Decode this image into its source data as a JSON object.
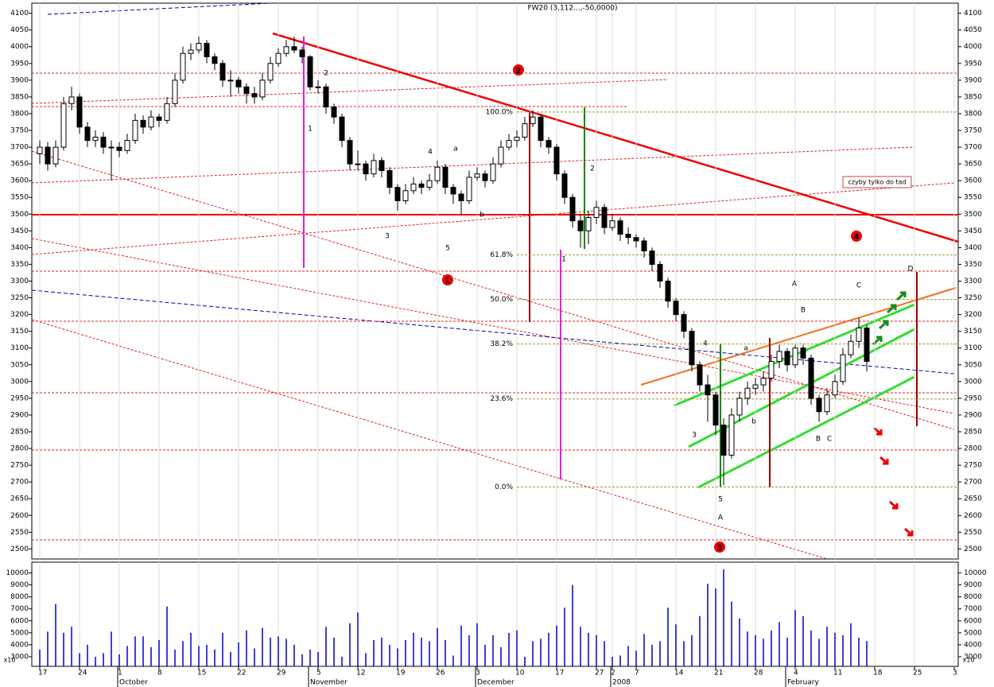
{
  "chart_data": {
    "type": "candlestick",
    "title": "FW20 (3,112...,-50,0000)",
    "categories": [
      "17",
      null,
      null,
      null,
      null,
      "24",
      null,
      null,
      null,
      null,
      "1",
      null,
      null,
      null,
      null,
      "8",
      null,
      null,
      null,
      null,
      "15",
      null,
      null,
      null,
      null,
      "22",
      null,
      null,
      null,
      null,
      "29",
      null,
      null,
      null,
      null,
      "5",
      null,
      null,
      null,
      null,
      "12",
      null,
      null,
      null,
      null,
      "19",
      null,
      null,
      null,
      null,
      "26",
      null,
      null,
      null,
      null,
      "3",
      null,
      null,
      null,
      null,
      "10",
      null,
      null,
      null,
      null,
      "17",
      null,
      null,
      null,
      null,
      "27",
      null,
      "2",
      null,
      null,
      "7",
      null,
      null,
      null,
      null,
      "14",
      null,
      null,
      null,
      null,
      "21",
      null,
      null,
      null,
      null,
      "28",
      null,
      null,
      null,
      null,
      "4",
      null,
      null,
      null,
      null,
      "11",
      null,
      null,
      null,
      null,
      "18",
      null,
      null,
      null,
      null,
      "25",
      null,
      null,
      null,
      null,
      "3"
    ],
    "months": [
      null,
      null,
      null,
      null,
      null,
      null,
      null,
      null,
      null,
      null,
      "October",
      null,
      null,
      null,
      null,
      null,
      null,
      null,
      null,
      null,
      null,
      null,
      null,
      null,
      null,
      null,
      null,
      null,
      null,
      null,
      null,
      null,
      null,
      null,
      "November",
      null,
      null,
      null,
      null,
      null,
      null,
      null,
      null,
      null,
      null,
      null,
      null,
      null,
      null,
      null,
      null,
      null,
      null,
      null,
      null,
      "December",
      null,
      null,
      null,
      null,
      null,
      null,
      null,
      null,
      null,
      null,
      null,
      null,
      null,
      null,
      null,
      null,
      "2008",
      null,
      null,
      null,
      null,
      null,
      null,
      null,
      null,
      null,
      null,
      null,
      null,
      null,
      null,
      null,
      null,
      null,
      null,
      null,
      null,
      null,
      "February",
      null,
      null,
      null,
      null,
      null,
      null,
      null,
      null,
      null,
      null,
      null,
      null,
      null,
      null,
      null,
      null,
      null,
      null,
      null,
      null
    ],
    "ohlc": [
      [
        3680,
        3720,
        3650,
        3700
      ],
      [
        3700,
        3715,
        3630,
        3650
      ],
      [
        3650,
        3720,
        3640,
        3700
      ],
      [
        3700,
        3850,
        3690,
        3830
      ],
      [
        3830,
        3880,
        3810,
        3850
      ],
      [
        3850,
        3860,
        3740,
        3760
      ],
      [
        3760,
        3775,
        3700,
        3720
      ],
      [
        3720,
        3750,
        3700,
        3730
      ],
      [
        3730,
        3745,
        3680,
        3700
      ],
      [
        3700,
        3720,
        3600,
        3700
      ],
      [
        3700,
        3715,
        3670,
        3690
      ],
      [
        3690,
        3740,
        3680,
        3720
      ],
      [
        3720,
        3800,
        3710,
        3780
      ],
      [
        3780,
        3795,
        3740,
        3760
      ],
      [
        3760,
        3810,
        3750,
        3790
      ],
      [
        3790,
        3800,
        3760,
        3780
      ],
      [
        3780,
        3850,
        3770,
        3830
      ],
      [
        3830,
        3920,
        3820,
        3900
      ],
      [
        3900,
        4000,
        3890,
        3980
      ],
      [
        3980,
        4010,
        3960,
        3990
      ],
      [
        3990,
        4030,
        3980,
        4010
      ],
      [
        4010,
        4020,
        3950,
        3970
      ],
      [
        3970,
        3980,
        3930,
        3950
      ],
      [
        3950,
        3960,
        3880,
        3900
      ],
      [
        3900,
        3930,
        3850,
        3900
      ],
      [
        3900,
        3910,
        3860,
        3880
      ],
      [
        3880,
        3890,
        3830,
        3860
      ],
      [
        3860,
        3880,
        3830,
        3850
      ],
      [
        3850,
        3920,
        3840,
        3900
      ],
      [
        3900,
        3970,
        3890,
        3950
      ],
      [
        3950,
        3995,
        3940,
        3980
      ],
      [
        3980,
        4020,
        3970,
        4000
      ],
      [
        4000,
        4030,
        3980,
        3990
      ],
      [
        3990,
        4000,
        3950,
        3970
      ],
      [
        3970,
        3975,
        3870,
        3880
      ],
      [
        3880,
        3900,
        3860,
        3880
      ],
      [
        3880,
        3890,
        3800,
        3820
      ],
      [
        3820,
        3830,
        3770,
        3790
      ],
      [
        3790,
        3800,
        3700,
        3720
      ],
      [
        3720,
        3730,
        3630,
        3650
      ],
      [
        3650,
        3690,
        3630,
        3650
      ],
      [
        3650,
        3660,
        3600,
        3620
      ],
      [
        3620,
        3680,
        3610,
        3660
      ],
      [
        3660,
        3670,
        3610,
        3630
      ],
      [
        3630,
        3640,
        3560,
        3580
      ],
      [
        3580,
        3590,
        3510,
        3540
      ],
      [
        3540,
        3590,
        3530,
        3570
      ],
      [
        3570,
        3610,
        3560,
        3590
      ],
      [
        3590,
        3600,
        3560,
        3580
      ],
      [
        3580,
        3620,
        3570,
        3600
      ],
      [
        3600,
        3660,
        3590,
        3640
      ],
      [
        3640,
        3650,
        3560,
        3580
      ],
      [
        3580,
        3590,
        3530,
        3560
      ],
      [
        3560,
        3570,
        3500,
        3540
      ],
      [
        3540,
        3630,
        3530,
        3610
      ],
      [
        3610,
        3640,
        3600,
        3620
      ],
      [
        3620,
        3630,
        3580,
        3600
      ],
      [
        3600,
        3670,
        3590,
        3650
      ],
      [
        3650,
        3720,
        3640,
        3700
      ],
      [
        3700,
        3740,
        3690,
        3720
      ],
      [
        3720,
        3750,
        3700,
        3730
      ],
      [
        3730,
        3790,
        3720,
        3770
      ],
      [
        3770,
        3810,
        3760,
        3790
      ],
      [
        3790,
        3800,
        3700,
        3720
      ],
      [
        3720,
        3730,
        3680,
        3700
      ],
      [
        3700,
        3710,
        3600,
        3620
      ],
      [
        3620,
        3630,
        3530,
        3550
      ],
      [
        3550,
        3560,
        3460,
        3480
      ],
      [
        3480,
        3500,
        3400,
        3450
      ],
      [
        3450,
        3510,
        3410,
        3490
      ],
      [
        3490,
        3540,
        3470,
        3520
      ],
      [
        3520,
        3530,
        3440,
        3460
      ],
      [
        3460,
        3500,
        3450,
        3480
      ],
      [
        3480,
        3490,
        3420,
        3440
      ],
      [
        3440,
        3460,
        3410,
        3430
      ],
      [
        3430,
        3440,
        3400,
        3420
      ],
      [
        3420,
        3430,
        3370,
        3390
      ],
      [
        3390,
        3400,
        3330,
        3350
      ],
      [
        3350,
        3360,
        3280,
        3300
      ],
      [
        3300,
        3310,
        3220,
        3240
      ],
      [
        3240,
        3250,
        3180,
        3200
      ],
      [
        3200,
        3210,
        3130,
        3150
      ],
      [
        3150,
        3160,
        3030,
        3050
      ],
      [
        3050,
        3060,
        2970,
        2990
      ],
      [
        2990,
        3020,
        2880,
        2960
      ],
      [
        2960,
        2970,
        2840,
        2870
      ],
      [
        2870,
        2890,
        2690,
        2780
      ],
      [
        2780,
        2920,
        2770,
        2900
      ],
      [
        2900,
        2970,
        2880,
        2950
      ],
      [
        2950,
        3000,
        2930,
        2980
      ],
      [
        2980,
        3010,
        2960,
        2990
      ],
      [
        2990,
        3030,
        2970,
        3010
      ],
      [
        3010,
        3080,
        3000,
        3060
      ],
      [
        3060,
        3110,
        3040,
        3090
      ],
      [
        3090,
        3100,
        3030,
        3050
      ],
      [
        3050,
        3110,
        3040,
        3100
      ],
      [
        3100,
        3110,
        3050,
        3070
      ],
      [
        3070,
        3080,
        2930,
        2950
      ],
      [
        2950,
        2960,
        2880,
        2910
      ],
      [
        2910,
        2980,
        2900,
        2960
      ],
      [
        2960,
        3020,
        2950,
        3000
      ],
      [
        3000,
        3100,
        2990,
        3080
      ],
      [
        3080,
        3140,
        3070,
        3120
      ],
      [
        3120,
        3190,
        3100,
        3160
      ],
      [
        3160,
        3170,
        3030,
        3060
      ],
      null,
      null,
      null,
      null,
      null,
      null,
      null,
      null,
      null,
      null,
      null
    ],
    "volume": [
      3600,
      5100,
      7400,
      5000,
      5500,
      3300,
      4000,
      3000,
      3300,
      5100,
      3200,
      3900,
      4700,
      4700,
      3800,
      4400,
      7200,
      3600,
      4300,
      5000,
      3900,
      4000,
      3600,
      5000,
      3400,
      4200,
      5200,
      3700,
      5400,
      4600,
      4700,
      4500,
      4000,
      3200,
      3600,
      3400,
      5500,
      4600,
      3000,
      5800,
      6700,
      3300,
      4400,
      4600,
      4000,
      3700,
      4400,
      5000,
      4600,
      4300,
      5400,
      4400,
      3100,
      5600,
      4800,
      5800,
      4000,
      4800,
      3800,
      5000,
      5200,
      3000,
      4300,
      4500,
      5000,
      5600,
      7100,
      9000,
      5500,
      5000,
      4800,
      4300,
      3000,
      3100,
      3900,
      3500,
      4900,
      4000,
      4300,
      7100,
      5700,
      4300,
      4800,
      6400,
      9100,
      8700,
      10300,
      7600,
      6200,
      5100,
      4800,
      4500,
      5200,
      5900,
      4600,
      6900,
      6400,
      5200,
      4500,
      5500,
      5000,
      4800,
      5800,
      4600,
      4300,
      null,
      null,
      null,
      null,
      null,
      null,
      null,
      null,
      null,
      null,
      null
    ],
    "volume_color": "#0000cc",
    "volume_unit": "x10",
    "ylim": [
      2470,
      4130
    ],
    "yticks": [
      2500,
      2550,
      2600,
      2650,
      2700,
      2750,
      2800,
      2850,
      2900,
      2950,
      3000,
      3050,
      3100,
      3150,
      3200,
      3250,
      3300,
      3350,
      3400,
      3450,
      3500,
      3550,
      3600,
      3650,
      3700,
      3750,
      3800,
      3850,
      3900,
      3950,
      4000,
      4050,
      4100
    ],
    "vlim": [
      2200,
      10900
    ],
    "vticks": [
      3000,
      4000,
      5000,
      6000,
      7000,
      8000,
      9000,
      10000
    ],
    "fib_levels": [
      {
        "label": "100.0%",
        "value": 3805
      },
      {
        "label": "61.8%",
        "value": 3378
      },
      {
        "label": "50.0%",
        "value": 3245
      },
      {
        "label": "38.2%",
        "value": 3112
      },
      {
        "label": "23.6%",
        "value": 2948
      },
      {
        "label": "0.0%",
        "value": 2685
      }
    ],
    "fib_color": "#999933",
    "wave_labels": [
      {
        "text": "1",
        "color": "#0000cc"
      },
      {
        "text": "2",
        "color": "#0000cc"
      },
      {
        "text": "3",
        "color": "#0000cc"
      },
      {
        "text": "4",
        "color": "#0000cc"
      },
      {
        "text": "5",
        "color": "#0000cc"
      },
      {
        "text": "a",
        "color": "#0000cc"
      },
      {
        "text": "b",
        "color": "#0000cc"
      },
      {
        "text": "1",
        "color": "#0000cc"
      },
      {
        "text": "2",
        "color": "#0000cc"
      },
      {
        "text": "3",
        "color": "#0000cc"
      },
      {
        "text": "4",
        "color": "#0000cc"
      },
      {
        "text": "5",
        "color": "#0000cc"
      },
      {
        "text": "A",
        "color": "#e07020"
      },
      {
        "text": "a",
        "color": "#e07020"
      },
      {
        "text": "b",
        "color": "#cc0000"
      },
      {
        "text": "A",
        "color": "#0000cc"
      },
      {
        "text": "B",
        "color": "#e07020"
      },
      {
        "text": "C",
        "color": "#0000cc"
      },
      {
        "text": "B",
        "color": "#0000cc"
      },
      {
        "text": "C",
        "color": "#e07020"
      },
      {
        "text": "D",
        "color": "#e07020"
      }
    ],
    "circled_labels": [
      "1",
      "2",
      "3",
      "4"
    ],
    "note": "czyby tylko do tad",
    "grid": true
  }
}
